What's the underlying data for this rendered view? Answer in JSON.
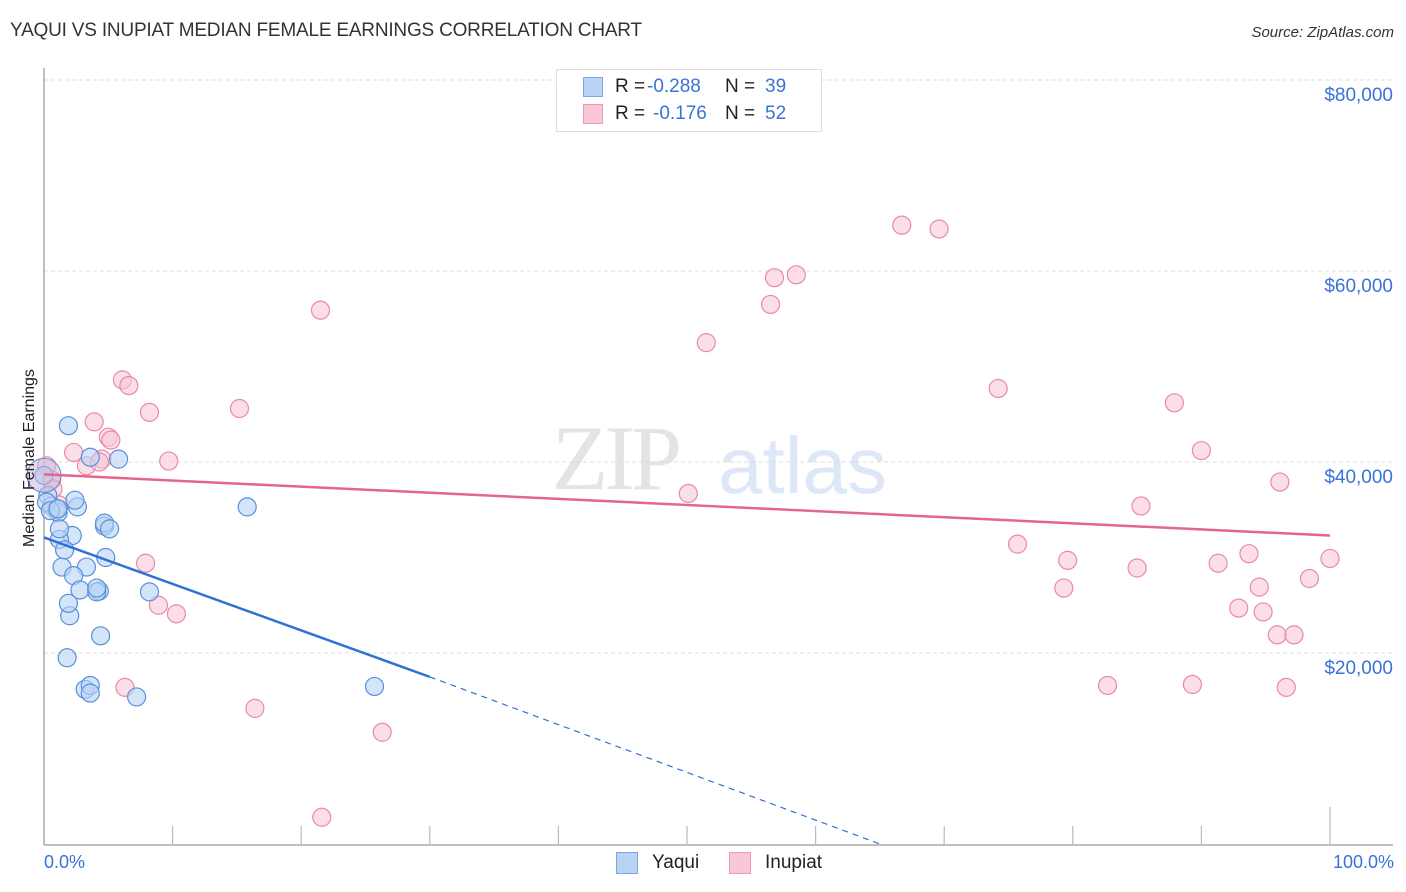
{
  "header": {
    "title": "YAQUI VS INUPIAT MEDIAN FEMALE EARNINGS CORRELATION CHART",
    "source": "Source: ZipAtlas.com"
  },
  "watermark": {
    "zip": "ZIP",
    "atlas": "atlas"
  },
  "legend": {
    "rows": [
      {
        "series": "Yaqui",
        "r_label": "R =",
        "r_value": "-0.288",
        "n_label": "N =",
        "n_value": "39"
      },
      {
        "series": "Inupiat",
        "r_label": "R =",
        "r_value": "-0.176",
        "n_label": "N =",
        "n_value": "52"
      }
    ]
  },
  "bottom_legend": {
    "items": [
      "Yaqui",
      "Inupiat"
    ]
  },
  "axes": {
    "ylabel": "Median Female Earnings",
    "y_ticks": [
      "$80,000",
      "$60,000",
      "$40,000",
      "$20,000"
    ],
    "x_ticks": [
      "0.0%",
      "100.0%"
    ]
  },
  "colors": {
    "yaqui_fill": "#b9d3f5",
    "yaqui_stroke": "#5b8fdc",
    "yaqui_line": "#2f72d6",
    "inupiat_fill": "#f9c8d7",
    "inupiat_stroke": "#e88aa8",
    "inupiat_line": "#e4668f",
    "tick_text": "#3a72d8"
  },
  "chart_data": {
    "type": "scatter",
    "title": "YAQUI VS INUPIAT MEDIAN FEMALE EARNINGS CORRELATION CHART",
    "xlabel": "",
    "ylabel": "Median Female Earnings",
    "xlim": [
      0,
      100
    ],
    "ylim": [
      0,
      80000
    ],
    "x_tick_labels": [
      "0.0%",
      "100.0%"
    ],
    "y_tick_labels": [
      "$20,000",
      "$40,000",
      "$60,000",
      "$80,000"
    ],
    "grid": true,
    "legend_position": "top-center",
    "series": [
      {
        "name": "Yaqui",
        "r": -0.288,
        "n": 39,
        "trend": {
          "x0": 0,
          "y0": 32100,
          "x1": 30,
          "y1": 17500,
          "dashed_to_x": 65,
          "dashed_to_y": 0
        },
        "points": [
          [
            1.9,
            43800
          ],
          [
            3.6,
            40500
          ],
          [
            5.8,
            40300
          ],
          [
            4.7,
            33300
          ],
          [
            2.6,
            35300
          ],
          [
            2.2,
            32300
          ],
          [
            1.2,
            31900
          ],
          [
            3.3,
            29000
          ],
          [
            1.4,
            29000
          ],
          [
            2.3,
            28100
          ],
          [
            4.3,
            26500
          ],
          [
            2.8,
            26600
          ],
          [
            4.1,
            26400
          ],
          [
            2.0,
            23900
          ],
          [
            1.9,
            25200
          ],
          [
            4.4,
            21800
          ],
          [
            1.8,
            19500
          ],
          [
            3.2,
            16200
          ],
          [
            3.6,
            16600
          ],
          [
            7.2,
            15400
          ],
          [
            25.7,
            16500
          ],
          [
            15.8,
            35300
          ],
          [
            8.2,
            26400
          ],
          [
            0.0,
            38600
          ],
          [
            0.3,
            36500
          ],
          [
            0.6,
            35400
          ],
          [
            1.1,
            34700
          ],
          [
            1.0,
            35100
          ],
          [
            0.2,
            35800
          ],
          [
            2.4,
            36000
          ],
          [
            4.7,
            33600
          ],
          [
            1.2,
            33000
          ],
          [
            4.8,
            30000
          ],
          [
            1.6,
            30800
          ],
          [
            4.1,
            26800
          ],
          [
            3.6,
            15800
          ],
          [
            0.5,
            34900
          ],
          [
            1.1,
            35100
          ],
          [
            5.1,
            33000
          ]
        ]
      },
      {
        "name": "Inupiat",
        "r": -0.176,
        "n": 52,
        "trend": {
          "x0": 0,
          "y0": 38700,
          "x1": 100,
          "y1": 32300
        },
        "points": [
          [
            21.5,
            55900
          ],
          [
            6.1,
            48600
          ],
          [
            6.6,
            48000
          ],
          [
            8.2,
            45200
          ],
          [
            15.2,
            45600
          ],
          [
            3.9,
            44200
          ],
          [
            5.0,
            42600
          ],
          [
            5.2,
            42300
          ],
          [
            2.3,
            41000
          ],
          [
            4.5,
            40300
          ],
          [
            9.7,
            40100
          ],
          [
            3.3,
            39600
          ],
          [
            4.3,
            40000
          ],
          [
            0.6,
            38100
          ],
          [
            1.2,
            35500
          ],
          [
            0.2,
            39600
          ],
          [
            0.7,
            37200
          ],
          [
            7.9,
            29400
          ],
          [
            8.9,
            25000
          ],
          [
            10.3,
            24100
          ],
          [
            6.3,
            16400
          ],
          [
            16.4,
            14200
          ],
          [
            26.3,
            11700
          ],
          [
            21.6,
            2800
          ],
          [
            51.5,
            52500
          ],
          [
            56.5,
            56500
          ],
          [
            56.8,
            59300
          ],
          [
            58.5,
            59600
          ],
          [
            66.7,
            64800
          ],
          [
            69.6,
            64400
          ],
          [
            50.1,
            36700
          ],
          [
            74.2,
            47700
          ],
          [
            87.9,
            46200
          ],
          [
            90.0,
            41200
          ],
          [
            96.1,
            37900
          ],
          [
            85.3,
            35400
          ],
          [
            75.7,
            31400
          ],
          [
            79.6,
            29700
          ],
          [
            85.0,
            28900
          ],
          [
            79.3,
            26800
          ],
          [
            91.3,
            29400
          ],
          [
            93.7,
            30400
          ],
          [
            100.0,
            29900
          ],
          [
            98.4,
            27800
          ],
          [
            94.5,
            26900
          ],
          [
            92.9,
            24700
          ],
          [
            94.8,
            24300
          ],
          [
            95.9,
            21900
          ],
          [
            97.2,
            21900
          ],
          [
            82.7,
            16600
          ],
          [
            89.3,
            16700
          ],
          [
            96.6,
            16400
          ]
        ]
      }
    ]
  }
}
